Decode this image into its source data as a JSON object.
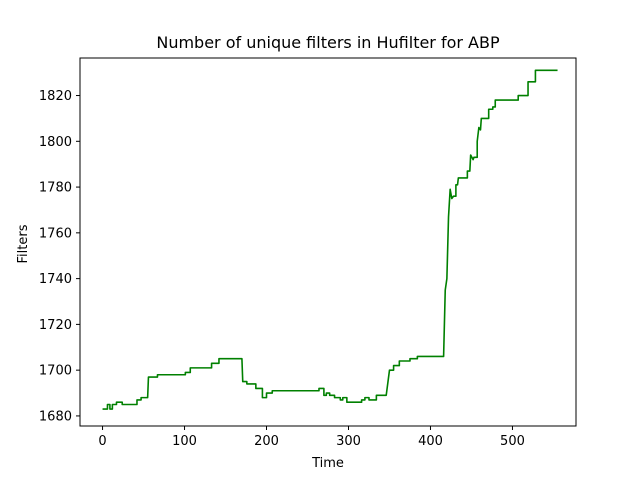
{
  "chart_data": {
    "type": "line",
    "title": "Number of unique filters in Hufilter for ABP",
    "xlabel": "Time",
    "ylabel": "Filters",
    "xlim": [
      -27.5,
      577.5
    ],
    "ylim": [
      1675.6,
      1836.4
    ],
    "xticks": [
      0,
      100,
      200,
      300,
      400,
      500
    ],
    "yticks": [
      1680,
      1700,
      1720,
      1740,
      1760,
      1780,
      1800,
      1820
    ],
    "grid": false,
    "legend": "none",
    "series": [
      {
        "color": "#008000",
        "points": [
          [
            0,
            1683
          ],
          [
            6,
            1683
          ],
          [
            6,
            1685
          ],
          [
            9,
            1685
          ],
          [
            9,
            1683
          ],
          [
            12,
            1683
          ],
          [
            12,
            1685
          ],
          [
            17,
            1685
          ],
          [
            17,
            1686
          ],
          [
            24,
            1686
          ],
          [
            24,
            1685
          ],
          [
            42,
            1685
          ],
          [
            42,
            1687
          ],
          [
            47,
            1687
          ],
          [
            47,
            1688
          ],
          [
            55,
            1688
          ],
          [
            56,
            1697
          ],
          [
            67,
            1697
          ],
          [
            67,
            1698
          ],
          [
            101,
            1698
          ],
          [
            101,
            1699
          ],
          [
            107,
            1699
          ],
          [
            107,
            1701
          ],
          [
            133,
            1701
          ],
          [
            133,
            1703
          ],
          [
            142,
            1703
          ],
          [
            142,
            1705
          ],
          [
            170,
            1705
          ],
          [
            171,
            1695
          ],
          [
            176,
            1695
          ],
          [
            176,
            1694
          ],
          [
            187,
            1694
          ],
          [
            187,
            1692
          ],
          [
            195,
            1692
          ],
          [
            195,
            1688
          ],
          [
            200,
            1688
          ],
          [
            200,
            1690
          ],
          [
            207,
            1690
          ],
          [
            207,
            1691
          ],
          [
            264,
            1691
          ],
          [
            264,
            1692
          ],
          [
            270,
            1692
          ],
          [
            270,
            1689
          ],
          [
            273,
            1689
          ],
          [
            273,
            1690
          ],
          [
            277,
            1690
          ],
          [
            277,
            1689
          ],
          [
            283,
            1689
          ],
          [
            283,
            1688
          ],
          [
            290,
            1688
          ],
          [
            290,
            1687
          ],
          [
            293,
            1687
          ],
          [
            293,
            1688
          ],
          [
            298,
            1688
          ],
          [
            298,
            1686
          ],
          [
            316,
            1686
          ],
          [
            316,
            1687
          ],
          [
            320,
            1687
          ],
          [
            320,
            1688
          ],
          [
            325,
            1688
          ],
          [
            325,
            1687
          ],
          [
            334,
            1687
          ],
          [
            334,
            1689
          ],
          [
            346,
            1689
          ],
          [
            350,
            1700
          ],
          [
            355,
            1700
          ],
          [
            355,
            1702
          ],
          [
            362,
            1702
          ],
          [
            362,
            1704
          ],
          [
            375,
            1704
          ],
          [
            375,
            1705
          ],
          [
            384,
            1705
          ],
          [
            384,
            1706
          ],
          [
            416,
            1706
          ],
          [
            418,
            1735
          ],
          [
            420,
            1740
          ],
          [
            422,
            1767
          ],
          [
            424,
            1779
          ],
          [
            426,
            1775
          ],
          [
            428,
            1776
          ],
          [
            431,
            1776
          ],
          [
            431,
            1781
          ],
          [
            433,
            1781
          ],
          [
            434,
            1784
          ],
          [
            445,
            1784
          ],
          [
            445,
            1787
          ],
          [
            448,
            1787
          ],
          [
            449,
            1794
          ],
          [
            452,
            1792
          ],
          [
            453,
            1793
          ],
          [
            457,
            1793
          ],
          [
            457,
            1800
          ],
          [
            459,
            1806
          ],
          [
            461,
            1805
          ],
          [
            462,
            1810
          ],
          [
            471,
            1810
          ],
          [
            471,
            1814
          ],
          [
            476,
            1814
          ],
          [
            476,
            1815
          ],
          [
            479,
            1815
          ],
          [
            479,
            1818
          ],
          [
            507,
            1818
          ],
          [
            507,
            1820
          ],
          [
            519,
            1820
          ],
          [
            519,
            1826
          ],
          [
            528,
            1826
          ],
          [
            528,
            1831
          ],
          [
            555,
            1831
          ]
        ]
      }
    ]
  }
}
